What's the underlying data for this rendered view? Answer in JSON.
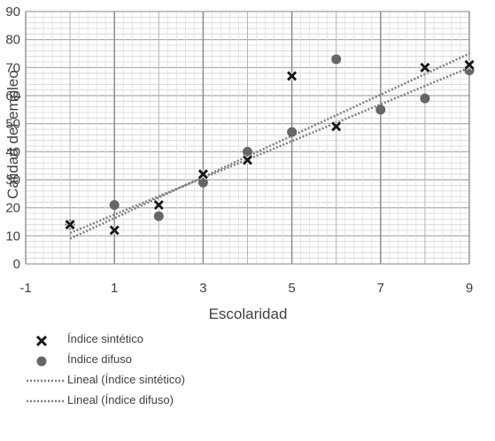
{
  "chart_data": {
    "type": "scatter",
    "xlabel": "Escolaridad",
    "ylabel": "Calidad del empleo",
    "xlim": [
      -1,
      9
    ],
    "ylim": [
      0,
      90
    ],
    "x_ticks": [
      "-1",
      "1",
      "3",
      "5",
      "7",
      "9"
    ],
    "y_ticks": [
      "0",
      "10",
      "20",
      "30",
      "40",
      "50",
      "60",
      "70",
      "80",
      "90"
    ],
    "grid": true,
    "legend_position": "bottom",
    "series": [
      {
        "name": "Índice sintético",
        "marker": "x",
        "color": "#1a1a1a",
        "points": [
          [
            0,
            14
          ],
          [
            1,
            12
          ],
          [
            2,
            21
          ],
          [
            3,
            32
          ],
          [
            4,
            37
          ],
          [
            5,
            67
          ],
          [
            6,
            49
          ],
          [
            8,
            70
          ],
          [
            9,
            71
          ]
        ]
      },
      {
        "name": "Índice difuso",
        "marker": "circle",
        "color": "#666666",
        "points": [
          [
            0,
            14
          ],
          [
            1,
            21
          ],
          [
            2,
            17
          ],
          [
            3,
            29
          ],
          [
            4,
            40
          ],
          [
            5,
            47
          ],
          [
            6,
            73
          ],
          [
            7,
            55
          ],
          [
            8,
            59
          ],
          [
            9,
            69
          ]
        ]
      }
    ],
    "trendlines": [
      {
        "name": "Lineal (Índice sintético)",
        "style": "dotted",
        "color": "#7f7f7f",
        "x": [
          0,
          9
        ],
        "y": [
          9,
          75
        ]
      },
      {
        "name": "Lineal (Índice difuso)",
        "style": "dotted",
        "color": "#7f7f7f",
        "x": [
          0,
          9
        ],
        "y": [
          11,
          70
        ]
      }
    ]
  }
}
